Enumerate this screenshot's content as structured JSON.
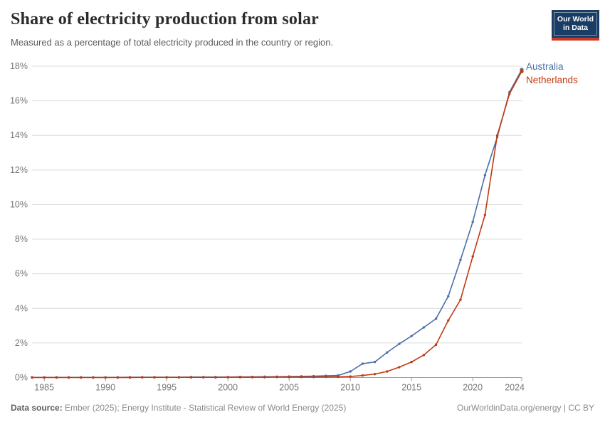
{
  "header": {
    "title": "Share of electricity production from solar",
    "subtitle": "Measured as a percentage of total electricity produced in the country or region."
  },
  "logo": {
    "line1": "Our World",
    "line2": "in Data",
    "bg_color": "#1a3d66",
    "stripe_color": "#cc3a27"
  },
  "footer": {
    "source_label": "Data source:",
    "source_text": " Ember (2025); Energy Institute - Statistical Review of World Energy (2025)",
    "link_text": "OurWorldinData.org/energy | CC BY"
  },
  "chart_data": {
    "type": "line",
    "title": "Share of electricity production from solar",
    "xlabel": "",
    "ylabel": "",
    "xlim": [
      1984,
      2024
    ],
    "ylim": [
      0,
      18
    ],
    "grid": "dashed-horizontal",
    "legend_position": "right-of-line-ends",
    "xticks": [
      1985,
      1990,
      1995,
      2000,
      2005,
      2010,
      2015,
      2020,
      2024
    ],
    "yticks": [
      0,
      2,
      4,
      6,
      8,
      10,
      12,
      14,
      16,
      18
    ],
    "ytick_suffix": "%",
    "x": [
      1984,
      1985,
      1986,
      1987,
      1988,
      1989,
      1990,
      1991,
      1992,
      1993,
      1994,
      1995,
      1996,
      1997,
      1998,
      1999,
      2000,
      2001,
      2002,
      2003,
      2004,
      2005,
      2006,
      2007,
      2008,
      2009,
      2010,
      2011,
      2012,
      2013,
      2014,
      2015,
      2016,
      2017,
      2018,
      2019,
      2020,
      2021,
      2022,
      2023,
      2024
    ],
    "series": [
      {
        "name": "Australia",
        "color": "#4c6fa5",
        "values": [
          0.01,
          0.01,
          0.01,
          0.01,
          0.01,
          0.01,
          0.01,
          0.01,
          0.02,
          0.02,
          0.02,
          0.02,
          0.02,
          0.03,
          0.03,
          0.03,
          0.03,
          0.04,
          0.04,
          0.05,
          0.05,
          0.06,
          0.07,
          0.08,
          0.1,
          0.12,
          0.35,
          0.8,
          0.9,
          1.45,
          1.95,
          2.4,
          2.9,
          3.4,
          4.7,
          6.8,
          9.0,
          11.7,
          13.9,
          16.5,
          17.8
        ]
      },
      {
        "name": "Netherlands",
        "color": "#c03a12",
        "values": [
          0.0,
          0.0,
          0.0,
          0.0,
          0.0,
          0.0,
          0.0,
          0.0,
          0.0,
          0.01,
          0.01,
          0.01,
          0.01,
          0.01,
          0.01,
          0.01,
          0.02,
          0.02,
          0.02,
          0.02,
          0.03,
          0.03,
          0.03,
          0.03,
          0.04,
          0.04,
          0.06,
          0.12,
          0.2,
          0.35,
          0.6,
          0.9,
          1.3,
          1.9,
          3.3,
          4.5,
          7.0,
          9.4,
          14.0,
          16.4,
          17.7
        ]
      }
    ],
    "axis_colors": {
      "grid": "#dcdcdc",
      "axis_line": "#9c9c9c",
      "tick_label": "#787878"
    }
  }
}
